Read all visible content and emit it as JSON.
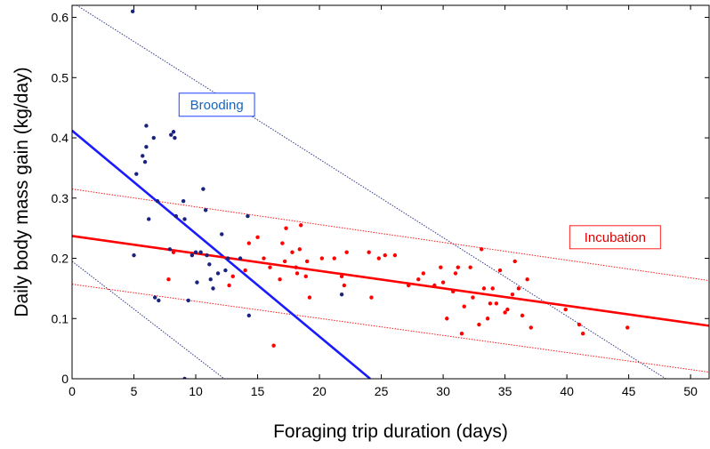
{
  "chart_data": {
    "type": "scatter",
    "title": "",
    "xlabel": "Foraging trip duration (days)",
    "ylabel": "Daily body mass gain (kg/day)",
    "xlim": [
      0,
      51.5
    ],
    "ylim": [
      0,
      0.62
    ],
    "x_ticks": [
      0,
      5,
      10,
      15,
      20,
      25,
      30,
      35,
      40,
      45,
      50
    ],
    "y_ticks": [
      0,
      0.1,
      0.2,
      0.3,
      0.4,
      0.5,
      0.6
    ],
    "x_tick_labels": [
      "0",
      "5",
      "10",
      "15",
      "20",
      "25",
      "30",
      "35",
      "40",
      "45",
      "50"
    ],
    "y_tick_labels": [
      "0",
      "0.1",
      "0.2",
      "0.3",
      "0.4",
      "0.5",
      "0.6"
    ],
    "grid": false,
    "annotations": [
      {
        "text": "Brooding",
        "color": "#1565c0",
        "border": "#1e40ff",
        "x": 11.7,
        "y": 0.455
      },
      {
        "text": "Incubation",
        "color": "#e00000",
        "border": "#ff2020",
        "x": 43.9,
        "y": 0.235
      }
    ],
    "series": [
      {
        "color": "#1a237e",
        "points": [
          [
            4.9,
            0.61
          ],
          [
            5.0,
            0.205
          ],
          [
            5.2,
            0.34
          ],
          [
            5.7,
            0.37
          ],
          [
            5.9,
            0.36
          ],
          [
            6.0,
            0.42
          ],
          [
            6.0,
            0.385
          ],
          [
            6.2,
            0.265
          ],
          [
            6.6,
            0.4
          ],
          [
            6.7,
            0.135
          ],
          [
            6.9,
            0.295
          ],
          [
            7.0,
            0.13
          ],
          [
            7.9,
            0.215
          ],
          [
            8.0,
            0.405
          ],
          [
            8.2,
            0.41
          ],
          [
            8.3,
            0.4
          ],
          [
            8.4,
            0.27
          ],
          [
            9.0,
            0.295
          ],
          [
            9.1,
            0.265
          ],
          [
            9.1,
            0.0
          ],
          [
            9.4,
            0.13
          ],
          [
            9.7,
            0.205
          ],
          [
            10.0,
            0.21
          ],
          [
            10.1,
            0.16
          ],
          [
            10.4,
            0.21
          ],
          [
            10.6,
            0.315
          ],
          [
            10.8,
            0.28
          ],
          [
            10.9,
            0.205
          ],
          [
            11.1,
            0.19
          ],
          [
            11.2,
            0.165
          ],
          [
            11.4,
            0.15
          ],
          [
            11.8,
            0.175
          ],
          [
            12.1,
            0.24
          ],
          [
            12.4,
            0.18
          ],
          [
            12.6,
            0.2
          ],
          [
            13.6,
            0.2
          ],
          [
            14.2,
            0.27
          ],
          [
            14.3,
            0.105
          ],
          [
            21.8,
            0.14
          ]
        ],
        "fit": [
          [
            0,
            0.412
          ],
          [
            24.1,
            0.0
          ]
        ],
        "ci_upper": [
          [
            0,
            0.625
          ],
          [
            48.0,
            0.0
          ]
        ],
        "ci_lower": [
          [
            0,
            0.195
          ],
          [
            12.3,
            0.0
          ]
        ]
      },
      {
        "color": "#ff0000",
        "points": [
          [
            7.8,
            0.165
          ],
          [
            8.2,
            0.21
          ],
          [
            12.7,
            0.155
          ],
          [
            13.0,
            0.17
          ],
          [
            14.0,
            0.18
          ],
          [
            14.3,
            0.225
          ],
          [
            15.0,
            0.235
          ],
          [
            15.5,
            0.2
          ],
          [
            16.0,
            0.185
          ],
          [
            16.3,
            0.055
          ],
          [
            16.8,
            0.165
          ],
          [
            17.0,
            0.225
          ],
          [
            17.2,
            0.195
          ],
          [
            17.3,
            0.25
          ],
          [
            17.8,
            0.21
          ],
          [
            18.1,
            0.185
          ],
          [
            18.2,
            0.175
          ],
          [
            18.4,
            0.215
          ],
          [
            18.5,
            0.255
          ],
          [
            18.9,
            0.17
          ],
          [
            19.0,
            0.195
          ],
          [
            19.2,
            0.135
          ],
          [
            20.2,
            0.2
          ],
          [
            21.2,
            0.2
          ],
          [
            21.8,
            0.17
          ],
          [
            22.0,
            0.155
          ],
          [
            22.2,
            0.21
          ],
          [
            24.0,
            0.21
          ],
          [
            24.2,
            0.135
          ],
          [
            24.8,
            0.2
          ],
          [
            25.3,
            0.205
          ],
          [
            26.1,
            0.205
          ],
          [
            27.2,
            0.155
          ],
          [
            28.0,
            0.165
          ],
          [
            28.4,
            0.175
          ],
          [
            29.3,
            0.155
          ],
          [
            29.8,
            0.185
          ],
          [
            30.0,
            0.16
          ],
          [
            30.3,
            0.1
          ],
          [
            30.8,
            0.145
          ],
          [
            31.0,
            0.175
          ],
          [
            31.2,
            0.185
          ],
          [
            31.5,
            0.075
          ],
          [
            31.7,
            0.12
          ],
          [
            32.2,
            0.185
          ],
          [
            32.4,
            0.135
          ],
          [
            32.9,
            0.09
          ],
          [
            33.1,
            0.215
          ],
          [
            33.3,
            0.15
          ],
          [
            33.6,
            0.1
          ],
          [
            33.8,
            0.125
          ],
          [
            34.0,
            0.15
          ],
          [
            34.3,
            0.125
          ],
          [
            34.6,
            0.18
          ],
          [
            35.0,
            0.11
          ],
          [
            35.2,
            0.115
          ],
          [
            35.6,
            0.14
          ],
          [
            35.8,
            0.195
          ],
          [
            36.1,
            0.15
          ],
          [
            36.4,
            0.105
          ],
          [
            36.8,
            0.165
          ],
          [
            37.1,
            0.085
          ],
          [
            39.9,
            0.115
          ],
          [
            41.0,
            0.09
          ],
          [
            41.3,
            0.075
          ],
          [
            44.9,
            0.085
          ]
        ],
        "fit": [
          [
            0,
            0.237
          ],
          [
            51.5,
            0.088
          ]
        ],
        "ci_upper": [
          [
            0,
            0.315
          ],
          [
            51.5,
            0.163
          ]
        ],
        "ci_lower": [
          [
            0,
            0.157
          ],
          [
            51.5,
            0.011
          ]
        ]
      }
    ]
  }
}
